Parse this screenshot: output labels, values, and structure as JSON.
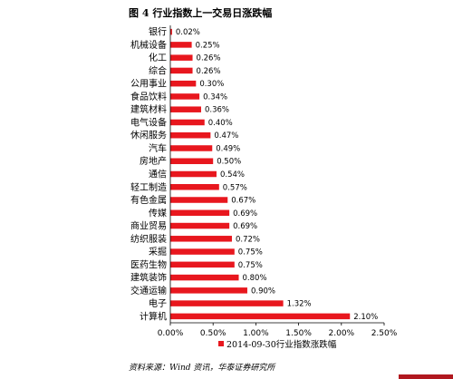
{
  "figure_title": "图 4  行业指数上一交易日涨跌幅",
  "source_note": "资料来源：Wind 资讯，华泰证券研究所",
  "chart_data": {
    "type": "bar",
    "orientation": "horizontal",
    "categories": [
      "银行",
      "机械设备",
      "化工",
      "综合",
      "公用事业",
      "食品饮料",
      "建筑材料",
      "电气设备",
      "休闲服务",
      "汽车",
      "房地产",
      "通信",
      "轻工制造",
      "有色金属",
      "传媒",
      "商业贸易",
      "纺织服装",
      "采掘",
      "医药生物",
      "建筑装饰",
      "交通运输",
      "电子",
      "计算机"
    ],
    "series": [
      {
        "name": "2014-09-30行业指数涨跌幅",
        "values": [
          0.02,
          0.25,
          0.26,
          0.26,
          0.3,
          0.34,
          0.36,
          0.4,
          0.47,
          0.49,
          0.5,
          0.54,
          0.57,
          0.67,
          0.69,
          0.69,
          0.72,
          0.75,
          0.75,
          0.8,
          0.9,
          1.32,
          2.1
        ],
        "labels": [
          "0.02%",
          "0.25%",
          "0.26%",
          "0.26%",
          "0.30%",
          "0.34%",
          "0.36%",
          "0.40%",
          "0.47%",
          "0.49%",
          "0.50%",
          "0.54%",
          "0.57%",
          "0.67%",
          "0.69%",
          "0.69%",
          "0.72%",
          "0.75%",
          "0.75%",
          "0.80%",
          "0.90%",
          "1.32%",
          "2.10%"
        ]
      }
    ],
    "xlim": [
      0,
      2.5
    ],
    "x_ticks": [
      0,
      0.5,
      1.0,
      1.5,
      2.0,
      2.5
    ],
    "x_tick_labels": [
      "0.00%",
      "0.50%",
      "1.00%",
      "1.50%",
      "2.00%",
      "2.50%"
    ],
    "grid": false,
    "legend_position": "bottom",
    "bar_color": "#e8171e",
    "accent_color": "#b1181f"
  }
}
